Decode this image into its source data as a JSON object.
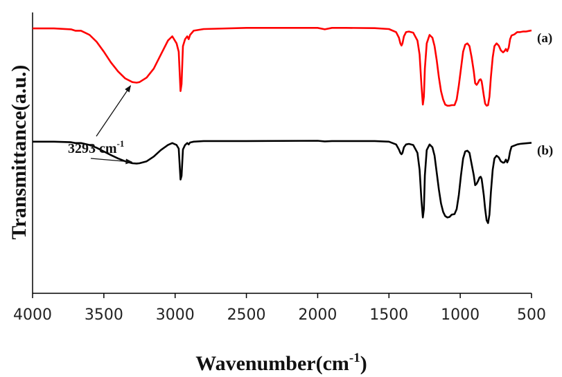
{
  "chart_data": {
    "type": "line",
    "title": "",
    "xlabel": "Wavenumber(cm",
    "xlabel_sup": "-1",
    "xlabel_close": ")",
    "ylabel": "Transmittance(a.u.)",
    "xlim": [
      4000,
      500
    ],
    "x_reversed": true,
    "ylim": [
      0,
      1
    ],
    "y_ticks_shown": false,
    "grid": false,
    "legend": "none",
    "x_ticks": [
      4000,
      3500,
      3000,
      2500,
      2000,
      1500,
      1000,
      500
    ],
    "x_tick_labels": [
      "4000",
      "3500",
      "3000",
      "2500",
      "2000",
      "1500",
      "1000",
      "500"
    ],
    "series": [
      {
        "label": "(a)",
        "color": "#ff0000",
        "x": [
          4000,
          3850,
          3730,
          3700,
          3660,
          3600,
          3550,
          3500,
          3450,
          3400,
          3350,
          3300,
          3270,
          3250,
          3200,
          3150,
          3100,
          3050,
          3020,
          2990,
          2975,
          2962,
          2955,
          2945,
          2930,
          2915,
          2905,
          2895,
          2870,
          2800,
          2500,
          2000,
          1950,
          1900,
          1800,
          1600,
          1500,
          1450,
          1430,
          1420,
          1412,
          1405,
          1395,
          1380,
          1360,
          1330,
          1300,
          1285,
          1272,
          1262,
          1255,
          1248,
          1235,
          1215,
          1195,
          1180,
          1165,
          1150,
          1135,
          1120,
          1105,
          1090,
          1075,
          1060,
          1040,
          1025,
          1010,
          995,
          980,
          965,
          950,
          935,
          920,
          905,
          895,
          885,
          875,
          865,
          857,
          850,
          845,
          835,
          825,
          815,
          805,
          795,
          785,
          772,
          760,
          745,
          730,
          715,
          700,
          690,
          680,
          670,
          660,
          650,
          640,
          620,
          600,
          580,
          560,
          540,
          520,
          500
        ],
        "y": [
          0.943,
          0.943,
          0.94,
          0.935,
          0.935,
          0.92,
          0.895,
          0.86,
          0.822,
          0.79,
          0.765,
          0.752,
          0.75,
          0.752,
          0.768,
          0.8,
          0.85,
          0.9,
          0.915,
          0.89,
          0.86,
          0.72,
          0.745,
          0.88,
          0.905,
          0.915,
          0.905,
          0.92,
          0.935,
          0.941,
          0.945,
          0.945,
          0.94,
          0.945,
          0.945,
          0.944,
          0.941,
          0.93,
          0.91,
          0.89,
          0.882,
          0.89,
          0.915,
          0.93,
          0.932,
          0.928,
          0.9,
          0.85,
          0.74,
          0.672,
          0.7,
          0.8,
          0.89,
          0.92,
          0.91,
          0.88,
          0.83,
          0.77,
          0.72,
          0.69,
          0.672,
          0.668,
          0.668,
          0.67,
          0.67,
          0.69,
          0.74,
          0.8,
          0.86,
          0.885,
          0.89,
          0.88,
          0.84,
          0.79,
          0.748,
          0.742,
          0.75,
          0.76,
          0.762,
          0.755,
          0.74,
          0.705,
          0.675,
          0.668,
          0.67,
          0.7,
          0.77,
          0.84,
          0.88,
          0.89,
          0.882,
          0.865,
          0.858,
          0.862,
          0.87,
          0.862,
          0.875,
          0.905,
          0.918,
          0.922,
          0.93,
          0.93,
          0.932,
          0.932,
          0.934,
          0.936
        ]
      },
      {
        "label": "(b)",
        "color": "#000000",
        "x": [
          4000,
          3850,
          3730,
          3700,
          3660,
          3600,
          3550,
          3500,
          3450,
          3400,
          3350,
          3300,
          3270,
          3250,
          3200,
          3150,
          3100,
          3050,
          3020,
          2990,
          2975,
          2962,
          2955,
          2945,
          2930,
          2915,
          2905,
          2895,
          2870,
          2800,
          2500,
          2000,
          1950,
          1900,
          1800,
          1600,
          1500,
          1450,
          1430,
          1420,
          1412,
          1405,
          1395,
          1380,
          1360,
          1330,
          1300,
          1285,
          1272,
          1262,
          1255,
          1248,
          1235,
          1215,
          1195,
          1180,
          1165,
          1150,
          1135,
          1120,
          1105,
          1090,
          1075,
          1060,
          1040,
          1025,
          1010,
          995,
          980,
          965,
          950,
          935,
          920,
          905,
          895,
          885,
          875,
          865,
          857,
          850,
          845,
          835,
          825,
          815,
          805,
          795,
          785,
          772,
          760,
          745,
          730,
          715,
          700,
          690,
          680,
          670,
          660,
          650,
          640,
          620,
          600,
          580,
          560,
          540,
          520,
          500
        ],
        "y": [
          0.54,
          0.54,
          0.538,
          0.535,
          0.535,
          0.528,
          0.518,
          0.505,
          0.492,
          0.48,
          0.47,
          0.463,
          0.462,
          0.463,
          0.47,
          0.487,
          0.51,
          0.528,
          0.535,
          0.528,
          0.515,
          0.405,
          0.418,
          0.512,
          0.528,
          0.535,
          0.53,
          0.537,
          0.54,
          0.542,
          0.542,
          0.543,
          0.541,
          0.542,
          0.542,
          0.542,
          0.54,
          0.53,
          0.512,
          0.5,
          0.495,
          0.5,
          0.52,
          0.53,
          0.532,
          0.528,
          0.5,
          0.44,
          0.33,
          0.27,
          0.3,
          0.42,
          0.51,
          0.53,
          0.52,
          0.49,
          0.43,
          0.37,
          0.32,
          0.29,
          0.275,
          0.27,
          0.272,
          0.28,
          0.282,
          0.3,
          0.35,
          0.42,
          0.48,
          0.505,
          0.508,
          0.5,
          0.46,
          0.42,
          0.385,
          0.39,
          0.4,
          0.412,
          0.415,
          0.408,
          0.39,
          0.35,
          0.3,
          0.26,
          0.25,
          0.28,
          0.36,
          0.44,
          0.48,
          0.49,
          0.484,
          0.47,
          0.465,
          0.466,
          0.476,
          0.466,
          0.478,
          0.505,
          0.522,
          0.526,
          0.53,
          0.532,
          0.533,
          0.534,
          0.535,
          0.536
        ]
      }
    ],
    "annotations": [
      {
        "text": "3293 cm",
        "sup": "-1",
        "x": 3293
      }
    ],
    "colors": {
      "series_a": "#ff0000",
      "series_b": "#000000",
      "axis": "#000000"
    }
  }
}
